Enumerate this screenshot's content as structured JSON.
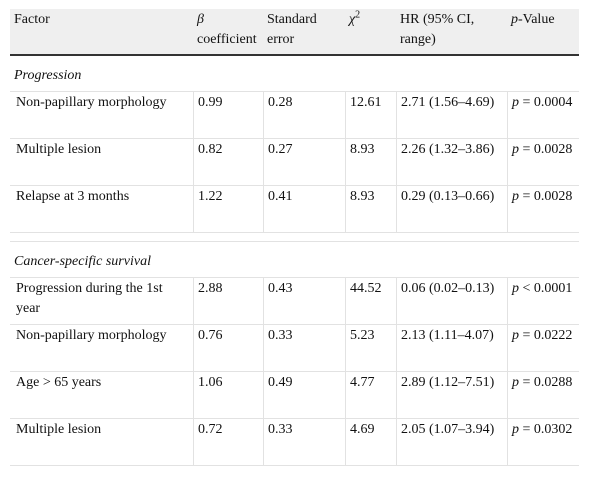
{
  "headers": {
    "factor": "Factor",
    "beta_symbol": "β",
    "beta_word": "coefficient",
    "se": "Standard error",
    "chi_symbol": "χ",
    "chi_sup": "2",
    "hr": "HR (95% CI, range)",
    "p_italic": "p",
    "p_rest": "-Value"
  },
  "sections": [
    {
      "title": "Progression",
      "rows": [
        {
          "factor": " Non-papillary morphology",
          "beta": "0.99",
          "se": "0.28",
          "chi2": "12.61",
          "hr": "2.71 (1.56–4.69)",
          "p_sym": "p",
          "p_val": " = 0.0004"
        },
        {
          "factor": " Multiple lesion",
          "beta": "0.82",
          "se": "0.27",
          "chi2": "8.93",
          "hr": "2.26 (1.32–3.86)",
          "p_sym": "p",
          "p_val": " = 0.0028"
        },
        {
          "factor": " Relapse at 3 months",
          "beta": "1.22",
          "se": "0.41",
          "chi2": "8.93",
          "hr": "0.29 (0.13–0.66)",
          "p_sym": "p",
          "p_val": " = 0.0028"
        }
      ]
    },
    {
      "title": "Cancer-specific survival",
      "rows": [
        {
          "factor": " Progression during the 1st year",
          "beta": "2.88",
          "se": "0.43",
          "chi2": "44.52",
          "hr": "0.06 (0.02–0.13)",
          "p_sym": "p",
          "p_val": " < 0.0001"
        },
        {
          "factor": " Non-papillary morphology",
          "beta": "0.76",
          "se": "0.33",
          "chi2": "5.23",
          "hr": "2.13 (1.11–4.07)",
          "p_sym": "p",
          "p_val": " = 0.0222"
        },
        {
          "factor": " Age > 65 years",
          "beta": "1.06",
          "se": "0.49",
          "chi2": "4.77",
          "hr": "2.89 (1.12–7.51)",
          "p_sym": "p",
          "p_val": " = 0.0288"
        },
        {
          "factor": " Multiple lesion",
          "beta": "0.72",
          "se": "0.33",
          "chi2": "4.69",
          "hr": "2.05 (1.07–3.94)",
          "p_sym": "p",
          "p_val": " = 0.0302"
        }
      ]
    }
  ]
}
